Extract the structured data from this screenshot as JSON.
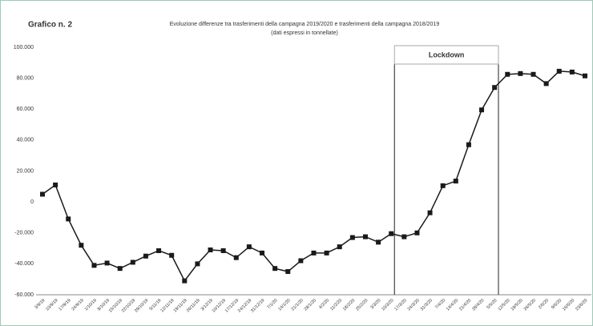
{
  "chart_data": {
    "type": "line",
    "title": "Grafico n. 2",
    "subtitle": [
      "Evoluzione differenze tra trasferimenti della campagna 2019/2020 e trasferimenti della campagna 2018/2019",
      "(dati espressi in tonnellate)"
    ],
    "annotation": "Lockdown",
    "categories": [
      "3/9/19",
      "10/9/19",
      "17/9/19",
      "24/9/19",
      "1/10/19",
      "8/10/19",
      "15/10/19",
      "22/10/19",
      "29/10/19",
      "5/11/19",
      "12/11/19",
      "19/11/19",
      "26/11/19",
      "3/12/19",
      "10/12/19",
      "17/12/19",
      "24/12/19",
      "31/12/19",
      "7/1/20",
      "14/1/20",
      "21/1/20",
      "28/1/20",
      "4/2/20",
      "11/2/20",
      "18/2/20",
      "25/2/20",
      "3/3/20",
      "10/3/20",
      "17/3/20",
      "24/3/20",
      "31/3/20",
      "7/4/20",
      "14/4/20",
      "21/4/20",
      "28/4/20",
      "5/5/20",
      "12/5/20",
      "19/5/20",
      "26/5/20",
      "2/6/20",
      "9/6/20",
      "16/6/20",
      "23/6/20"
    ],
    "values": [
      5000,
      11000,
      -11000,
      -28000,
      -41000,
      -39500,
      -43000,
      -39000,
      -35000,
      -31500,
      -34500,
      -51000,
      -40000,
      -31000,
      -31500,
      -36000,
      -29000,
      -33000,
      -43000,
      -45000,
      -38000,
      -33000,
      -33000,
      -29000,
      -23000,
      -22500,
      -26000,
      -20500,
      -22500,
      -20000,
      -7000,
      10500,
      13500,
      37000,
      59500,
      74000,
      82500,
      83000,
      82500,
      76500,
      84500,
      84000,
      81500
    ],
    "color": "#1a1a1a",
    "ylim": [
      -60000,
      100000
    ],
    "yticks": [
      {
        "value": -60000,
        "label": "-60.000"
      },
      {
        "value": -40000,
        "label": "-40.000"
      },
      {
        "value": -20000,
        "label": "-20.000"
      },
      0,
      {
        "value": 20000,
        "label": "20.000"
      },
      {
        "value": 40000,
        "label": "40.000"
      },
      {
        "value": 60000,
        "label": "60.000"
      },
      {
        "value": 80000,
        "label": "80.000"
      },
      {
        "value": 100000,
        "label": "100.000"
      }
    ]
  }
}
